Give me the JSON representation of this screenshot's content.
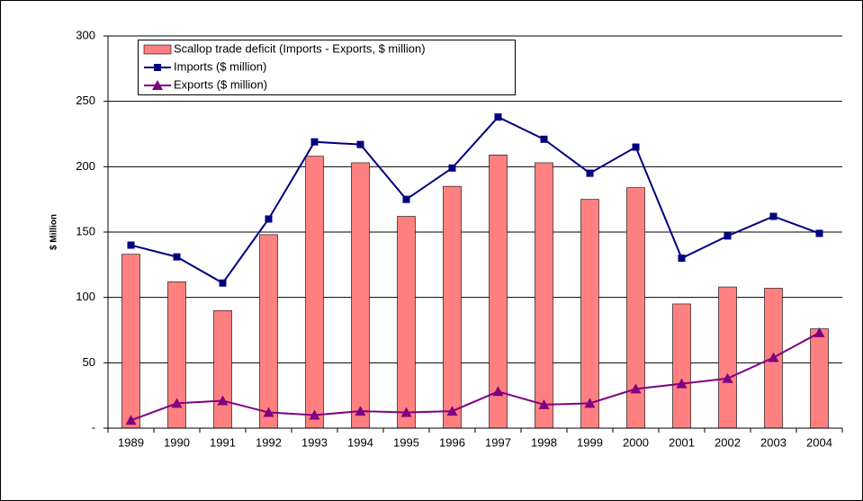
{
  "chart_data": {
    "type": "bar",
    "y_label": "$ Million",
    "categories": [
      "1989",
      "1990",
      "1991",
      "1992",
      "1993",
      "1994",
      "1995",
      "1996",
      "1997",
      "1998",
      "1999",
      "2000",
      "2001",
      "2002",
      "2003",
      "2004"
    ],
    "series": [
      {
        "name": "Scallop trade deficit (Imports - Exports, $ million)",
        "type": "bar",
        "color": "#ff8080",
        "values": [
          133,
          112,
          90,
          148,
          208,
          203,
          162,
          185,
          209,
          203,
          175,
          184,
          95,
          108,
          107,
          76
        ]
      },
      {
        "name": "Imports ($ million)",
        "type": "line",
        "marker": "square",
        "color": "#000080",
        "values": [
          140,
          131,
          111,
          160,
          219,
          217,
          175,
          199,
          238,
          221,
          195,
          215,
          130,
          147,
          162,
          149
        ]
      },
      {
        "name": "Exports ($ million)",
        "type": "line",
        "marker": "triangle",
        "color": "#800080",
        "values": [
          6,
          19,
          21,
          12,
          10,
          13,
          12,
          13,
          28,
          18,
          19,
          30,
          34,
          38,
          54,
          73
        ]
      }
    ],
    "ylim": [
      0,
      300
    ],
    "yticks": [
      {
        "value": 0,
        "label": "-"
      },
      50,
      100,
      150,
      200,
      250,
      300
    ],
    "grid": true
  }
}
